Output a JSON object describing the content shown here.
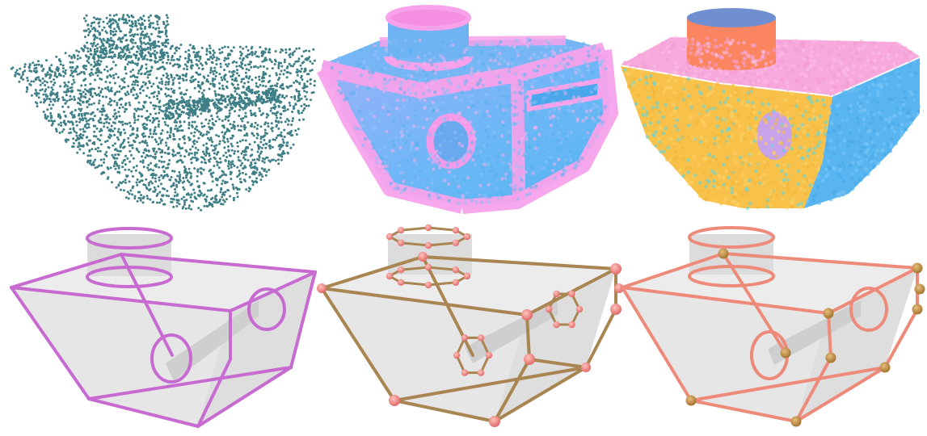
{
  "figure": {
    "panels": [
      {
        "id": "points",
        "kind": "point-cloud",
        "row": "top",
        "col": 1
      },
      {
        "id": "normals",
        "kind": "point-cloud-colored",
        "row": "top",
        "col": 2
      },
      {
        "id": "segments",
        "kind": "point-cloud-segmented",
        "row": "top",
        "col": 3
      },
      {
        "id": "curves",
        "kind": "wireframe-curves",
        "row": "bottom",
        "col": 1
      },
      {
        "id": "graph",
        "kind": "wireframe-graph",
        "row": "bottom",
        "col": 2
      },
      {
        "id": "corners",
        "kind": "wireframe-corners",
        "row": "bottom",
        "col": 3
      }
    ],
    "colors": {
      "teal_points": "#3f7f86",
      "normal_blue": "#5ab4f5",
      "normal_pink": "#f39be8",
      "segment_orange": "#fb8560",
      "segment_yellow": "#f8c24a",
      "segment_blue": "#4fb2f2",
      "segment_pink": "#f7a6db",
      "segment_slate": "#6f8fd0",
      "curve_purple": "#c76bd1",
      "curve_brown": "#a88551",
      "curve_salmon": "#ed8a79",
      "node_pink": "#ee7f7c",
      "corner_gold": "#c08d42",
      "shell_fill": "#e8e8e8",
      "shell_dark": "#d3d3d3"
    }
  }
}
